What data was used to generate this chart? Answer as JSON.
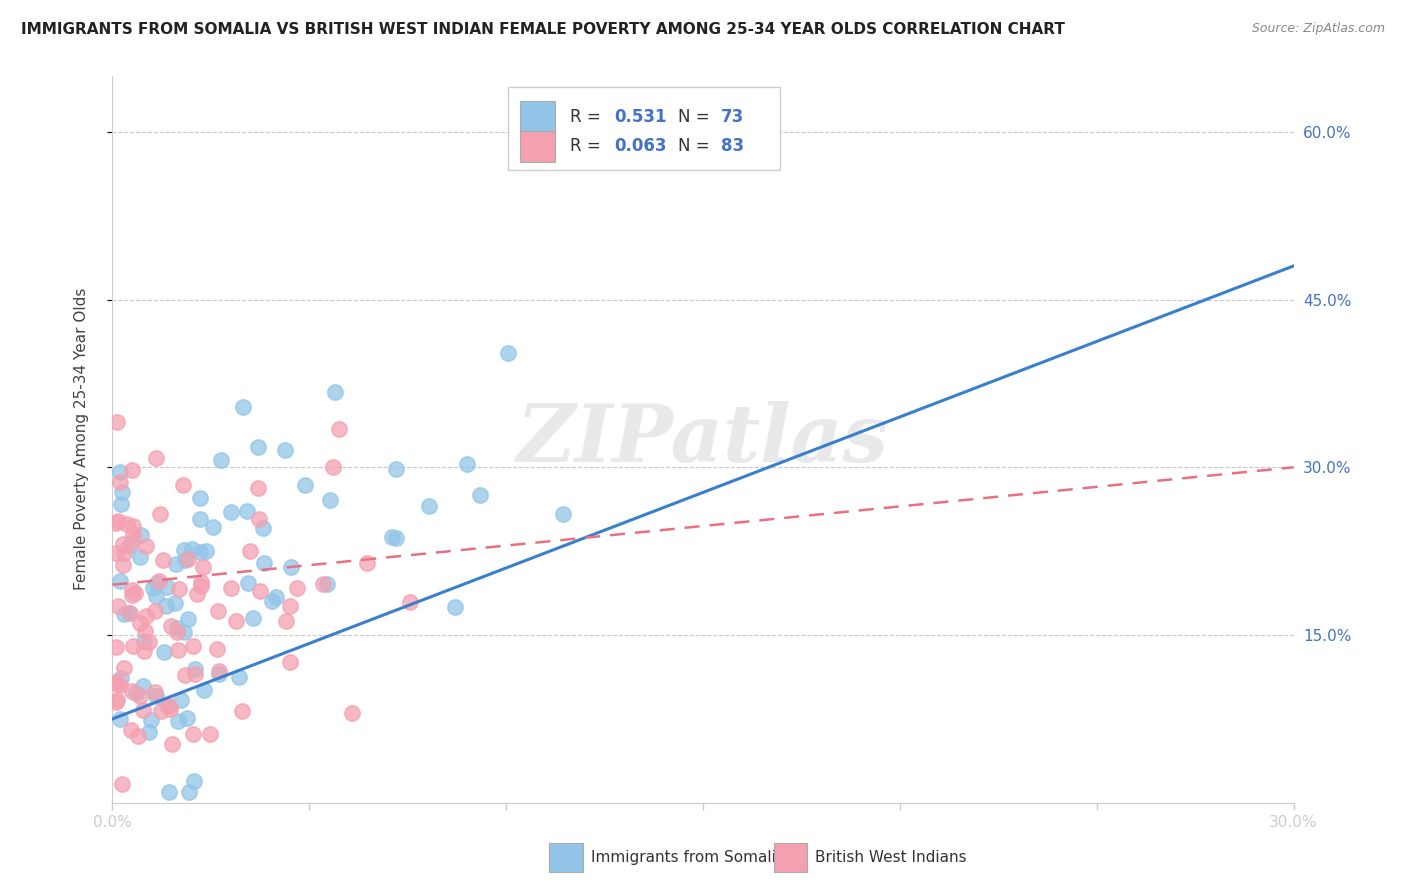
{
  "title": "IMMIGRANTS FROM SOMALIA VS BRITISH WEST INDIAN FEMALE POVERTY AMONG 25-34 YEAR OLDS CORRELATION CHART",
  "source": "Source: ZipAtlas.com",
  "ylabel": "Female Poverty Among 25-34 Year Olds",
  "xlim": [
    0.0,
    0.3
  ],
  "ylim": [
    0.0,
    0.65
  ],
  "xticks": [
    0.0,
    0.05,
    0.1,
    0.15,
    0.2,
    0.25,
    0.3
  ],
  "xticklabels": [
    "0.0%",
    "",
    "",
    "",
    "",
    "",
    "30.0%"
  ],
  "ytick_positions": [
    0.15,
    0.3,
    0.45,
    0.6
  ],
  "yticklabels_right": [
    "15.0%",
    "30.0%",
    "45.0%",
    "60.0%"
  ],
  "R_somalia": 0.531,
  "N_somalia": 73,
  "R_bwi": 0.063,
  "N_bwi": 83,
  "somalia_color": "#92c5e8",
  "bwi_color": "#f4a0b0",
  "somalia_line_color": "#3a7fcc",
  "bwi_line_color": "#e87080",
  "legend_label_somalia": "Immigrants from Somalia",
  "legend_label_bwi": "British West Indians",
  "watermark_text": "ZIPatlas",
  "background_color": "#ffffff",
  "grid_color": "#c8c8c8",
  "tick_label_color": "#4472c4",
  "title_color": "#222222",
  "source_color": "#888888"
}
